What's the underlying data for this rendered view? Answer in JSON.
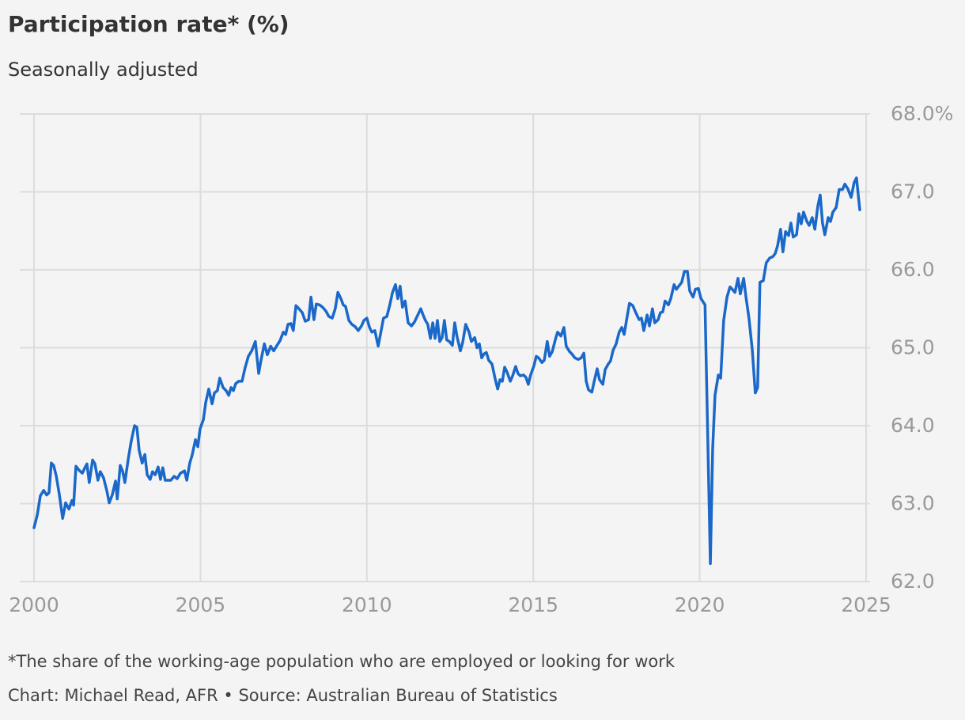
{
  "chart_data": {
    "type": "line",
    "title": "Participation rate* (%)",
    "subtitle": "Seasonally adjusted",
    "footnote": "*The share of the working-age population who are employed or looking for work",
    "source": "Chart: Michael Read, AFR • Source: Australian Bureau of Statistics",
    "color": "#1a68c9",
    "grid": true,
    "xlim": [
      2000,
      2025
    ],
    "xticks": [
      2000,
      2005,
      2010,
      2015,
      2020,
      2025
    ],
    "ylim": [
      62,
      68
    ],
    "yticks": [
      {
        "value": 68,
        "label": "68.0%"
      },
      {
        "value": 67,
        "label": "67.0"
      },
      {
        "value": 66,
        "label": "66.0"
      },
      {
        "value": 65,
        "label": "65.0"
      },
      {
        "value": 64,
        "label": "64.0"
      },
      {
        "value": 63,
        "label": "63.0"
      },
      {
        "value": 62,
        "label": "62.0"
      }
    ],
    "x": [
      2000.0,
      2000.1,
      2000.19,
      2000.29,
      2000.38,
      2000.45,
      2000.52,
      2000.59,
      2000.67,
      2000.76,
      2000.86,
      2000.95,
      2001.05,
      2001.14,
      2001.19,
      2001.26,
      2001.35,
      2001.45,
      2001.54,
      2001.59,
      2001.66,
      2001.76,
      2001.83,
      2001.92,
      2001.99,
      2002.09,
      2002.19,
      2002.26,
      2002.35,
      2002.45,
      2002.5,
      2002.59,
      2002.66,
      2002.73,
      2002.83,
      2002.92,
      2003.02,
      2003.09,
      2003.16,
      2003.25,
      2003.33,
      2003.4,
      2003.49,
      2003.56,
      2003.64,
      2003.73,
      2003.8,
      2003.87,
      2003.94,
      2004.04,
      2004.11,
      2004.21,
      2004.3,
      2004.4,
      2004.52,
      2004.59,
      2004.68,
      2004.75,
      2004.85,
      2004.92,
      2004.99,
      2005.09,
      2005.16,
      2005.25,
      2005.35,
      2005.42,
      2005.51,
      2005.58,
      2005.68,
      2005.77,
      2005.85,
      2005.92,
      2005.99,
      2006.06,
      2006.15,
      2006.25,
      2006.34,
      2006.44,
      2006.54,
      2006.65,
      2006.75,
      2006.82,
      2006.92,
      2007.01,
      2007.11,
      2007.2,
      2007.3,
      2007.39,
      2007.49,
      2007.56,
      2007.63,
      2007.72,
      2007.79,
      2007.87,
      2007.96,
      2008.06,
      2008.15,
      2008.25,
      2008.32,
      2008.41,
      2008.48,
      2008.58,
      2008.67,
      2008.77,
      2008.86,
      2008.96,
      2009.05,
      2009.13,
      2009.22,
      2009.29,
      2009.36,
      2009.46,
      2009.55,
      2009.65,
      2009.74,
      2009.84,
      2009.91,
      2010.0,
      2010.08,
      2010.15,
      2010.24,
      2010.34,
      2010.43,
      2010.5,
      2010.6,
      2010.69,
      2010.77,
      2010.86,
      2010.93,
      2011.0,
      2011.07,
      2011.15,
      2011.24,
      2011.34,
      2011.43,
      2011.53,
      2011.62,
      2011.69,
      2011.76,
      2011.83,
      2011.91,
      2011.98,
      2012.05,
      2012.12,
      2012.19,
      2012.26,
      2012.33,
      2012.4,
      2012.48,
      2012.57,
      2012.64,
      2012.71,
      2012.81,
      2012.88,
      2012.97,
      2013.07,
      2013.14,
      2013.24,
      2013.31,
      2013.38,
      2013.45,
      2013.52,
      2013.59,
      2013.66,
      2013.76,
      2013.85,
      2013.93,
      2014.0,
      2014.07,
      2014.14,
      2014.21,
      2014.31,
      2014.38,
      2014.47,
      2014.54,
      2014.61,
      2014.71,
      2014.78,
      2014.85,
      2014.92,
      2015.02,
      2015.09,
      2015.16,
      2015.26,
      2015.33,
      2015.42,
      2015.49,
      2015.57,
      2015.66,
      2015.73,
      2015.83,
      2015.92,
      2015.99,
      2016.09,
      2016.16,
      2016.25,
      2016.35,
      2016.44,
      2016.52,
      2016.59,
      2016.66,
      2016.76,
      2016.83,
      2016.92,
      2016.99,
      2017.09,
      2017.16,
      2017.25,
      2017.32,
      2017.4,
      2017.49,
      2017.58,
      2017.66,
      2017.73,
      2017.82,
      2017.89,
      2017.99,
      2018.08,
      2018.18,
      2018.25,
      2018.32,
      2018.42,
      2018.49,
      2018.58,
      2018.65,
      2018.75,
      2018.82,
      2018.89,
      2018.96,
      2019.06,
      2019.13,
      2019.23,
      2019.3,
      2019.37,
      2019.46,
      2019.54,
      2019.63,
      2019.7,
      2019.8,
      2019.87,
      2019.96,
      2020.04,
      2020.16,
      2020.32,
      2020.39,
      2020.46,
      2020.56,
      2020.63,
      2020.72,
      2020.82,
      2020.91,
      2020.98,
      2021.06,
      2021.15,
      2021.22,
      2021.32,
      2021.39,
      2021.48,
      2021.58,
      2021.67,
      2021.74,
      2021.81,
      2021.91,
      2022.0,
      2022.1,
      2022.2,
      2022.27,
      2022.34,
      2022.43,
      2022.5,
      2022.58,
      2022.67,
      2022.74,
      2022.81,
      2022.91,
      2022.98,
      2023.05,
      2023.12,
      2023.22,
      2023.29,
      2023.38,
      2023.46,
      2023.55,
      2023.62,
      2023.69,
      2023.76,
      2023.86,
      2023.93,
      2024.0,
      2024.1,
      2024.19,
      2024.29,
      2024.36,
      2024.45,
      2024.55,
      2024.64,
      2024.71,
      2024.81
    ],
    "values": [
      62.69,
      62.86,
      63.1,
      63.17,
      63.11,
      63.14,
      63.52,
      63.49,
      63.35,
      63.12,
      62.81,
      63.01,
      62.93,
      63.04,
      62.98,
      63.48,
      63.43,
      63.39,
      63.47,
      63.51,
      63.27,
      63.56,
      63.51,
      63.3,
      63.41,
      63.33,
      63.16,
      63.01,
      63.11,
      63.29,
      63.06,
      63.49,
      63.42,
      63.27,
      63.57,
      63.8,
      64.0,
      63.98,
      63.68,
      63.52,
      63.63,
      63.37,
      63.31,
      63.41,
      63.37,
      63.47,
      63.31,
      63.46,
      63.3,
      63.3,
      63.3,
      63.35,
      63.32,
      63.39,
      63.42,
      63.3,
      63.52,
      63.62,
      63.82,
      63.73,
      63.96,
      64.08,
      64.3,
      64.47,
      64.28,
      64.42,
      64.45,
      64.61,
      64.49,
      64.45,
      64.39,
      64.49,
      64.45,
      64.54,
      64.57,
      64.57,
      64.74,
      64.89,
      64.96,
      65.08,
      64.67,
      64.84,
      65.05,
      64.91,
      65.02,
      64.96,
      65.03,
      65.09,
      65.2,
      65.17,
      65.3,
      65.31,
      65.22,
      65.54,
      65.5,
      65.45,
      65.34,
      65.36,
      65.65,
      65.36,
      65.56,
      65.55,
      65.52,
      65.47,
      65.4,
      65.38,
      65.5,
      65.71,
      65.63,
      65.55,
      65.53,
      65.35,
      65.3,
      65.27,
      65.22,
      65.28,
      65.35,
      65.38,
      65.26,
      65.2,
      65.22,
      65.02,
      65.22,
      65.38,
      65.4,
      65.55,
      65.71,
      65.81,
      65.63,
      65.79,
      65.52,
      65.6,
      65.32,
      65.28,
      65.33,
      65.42,
      65.5,
      65.42,
      65.35,
      65.3,
      65.12,
      65.32,
      65.12,
      65.35,
      65.08,
      65.13,
      65.35,
      65.1,
      65.08,
      65.03,
      65.32,
      65.14,
      64.96,
      65.07,
      65.3,
      65.2,
      65.08,
      65.13,
      65.0,
      65.05,
      64.87,
      64.92,
      64.94,
      64.84,
      64.79,
      64.61,
      64.47,
      64.59,
      64.57,
      64.75,
      64.69,
      64.57,
      64.64,
      64.76,
      64.67,
      64.64,
      64.65,
      64.62,
      64.53,
      64.65,
      64.77,
      64.89,
      64.87,
      64.81,
      64.84,
      65.08,
      64.89,
      64.95,
      65.1,
      65.2,
      65.15,
      65.26,
      65.02,
      64.95,
      64.92,
      64.87,
      64.85,
      64.87,
      64.93,
      64.57,
      64.46,
      64.43,
      64.57,
      64.73,
      64.59,
      64.53,
      64.72,
      64.79,
      64.83,
      64.97,
      65.05,
      65.2,
      65.26,
      65.17,
      65.4,
      65.57,
      65.54,
      65.45,
      65.36,
      65.38,
      65.22,
      65.42,
      65.28,
      65.5,
      65.32,
      65.36,
      65.45,
      65.46,
      65.6,
      65.55,
      65.63,
      65.81,
      65.75,
      65.79,
      65.84,
      65.98,
      65.98,
      65.73,
      65.65,
      65.75,
      65.76,
      65.63,
      65.55,
      62.23,
      63.71,
      64.39,
      64.65,
      64.61,
      65.35,
      65.65,
      65.78,
      65.75,
      65.71,
      65.89,
      65.69,
      65.89,
      65.65,
      65.38,
      64.97,
      64.42,
      64.49,
      65.84,
      65.86,
      66.09,
      66.15,
      66.17,
      66.21,
      66.31,
      66.52,
      66.23,
      66.49,
      66.44,
      66.6,
      66.42,
      66.45,
      66.72,
      66.59,
      66.74,
      66.62,
      66.57,
      66.67,
      66.52,
      66.82,
      66.96,
      66.6,
      66.45,
      66.67,
      66.62,
      66.74,
      66.8,
      67.03,
      67.03,
      67.1,
      67.04,
      66.93,
      67.12,
      67.18,
      66.77
    ]
  }
}
